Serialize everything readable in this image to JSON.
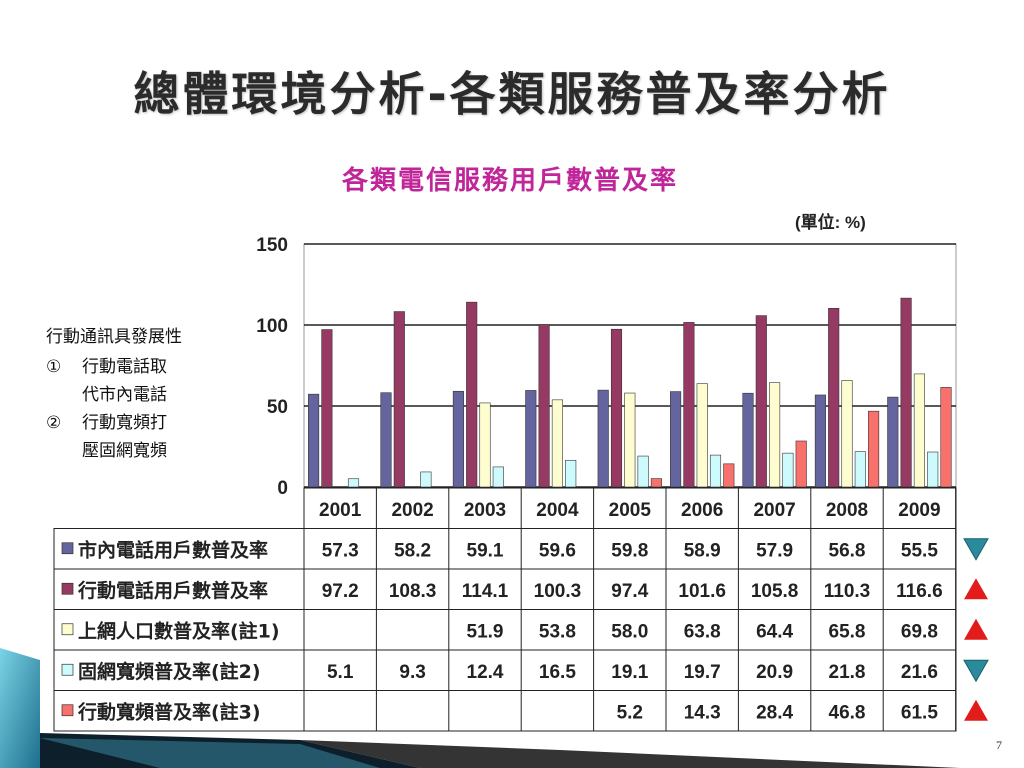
{
  "slide": {
    "title": "總體環境分析-各類服務普及率分析",
    "page_number": "7"
  },
  "notes": {
    "heading": "行動通訊具發展性",
    "items": [
      {
        "num": "①",
        "line1": "行動電話取",
        "line2": "代市內電話"
      },
      {
        "num": "②",
        "line1": "行動寬頻打",
        "line2": "壓固網寬頻"
      }
    ]
  },
  "chart_data": {
    "type": "bar",
    "title": "各類電信服務用戶數普及率",
    "unit_label": "(單位: %)",
    "categories": [
      "2001",
      "2002",
      "2003",
      "2004",
      "2005",
      "2006",
      "2007",
      "2008",
      "2009"
    ],
    "ylim": [
      0,
      150
    ],
    "yticks": [
      "0",
      "50",
      "100",
      "150"
    ],
    "grid": true,
    "legend": "table-below",
    "series": [
      {
        "name": "市內電話用戶數普及率",
        "color": "#64659e",
        "trend": "down",
        "values": [
          57.3,
          58.2,
          59.1,
          59.6,
          59.8,
          58.9,
          57.9,
          56.8,
          55.5
        ],
        "labels": [
          "57.3",
          "58.2",
          "59.1",
          "59.6",
          "59.8",
          "58.9",
          "57.9",
          "56.8",
          "55.5"
        ]
      },
      {
        "name": "行動電話用戶數普及率",
        "color": "#963a63",
        "trend": "up",
        "values": [
          97.2,
          108.3,
          114.1,
          100.3,
          97.4,
          101.6,
          105.8,
          110.3,
          116.6
        ],
        "labels": [
          "97.2",
          "108.3",
          "114.1",
          "100.3",
          "97.4",
          "101.6",
          "105.8",
          "110.3",
          "116.6"
        ]
      },
      {
        "name": "上網人口數普及率(註1)",
        "color": "#fefdd0",
        "trend": "up",
        "values": [
          null,
          null,
          51.9,
          53.8,
          58.0,
          63.8,
          64.4,
          65.8,
          69.8
        ],
        "labels": [
          "",
          "",
          "51.9",
          "53.8",
          "58.0",
          "63.8",
          "64.4",
          "65.8",
          "69.8"
        ]
      },
      {
        "name": "固網寬頻普及率(註2)",
        "color": "#cdfafc",
        "trend": "down",
        "values": [
          5.1,
          9.3,
          12.4,
          16.5,
          19.1,
          19.7,
          20.9,
          21.8,
          21.6
        ],
        "labels": [
          "5.1",
          "9.3",
          "12.4",
          "16.5",
          "19.1",
          "19.7",
          "20.9",
          "21.8",
          "21.6"
        ]
      },
      {
        "name": "行動寬頻普及率(註3)",
        "color": "#f8716c",
        "trend": "up",
        "values": [
          null,
          null,
          null,
          null,
          5.2,
          14.3,
          28.4,
          46.8,
          61.5
        ],
        "labels": [
          "",
          "",
          "",
          "",
          "5.2",
          "14.3",
          "28.4",
          "46.8",
          "61.5"
        ]
      }
    ]
  },
  "colors": {
    "title_text": "#2b2b2b",
    "chart_title": "#c0269a",
    "trend_up": "#e21b1b",
    "trend_down": "#2a8b9c"
  }
}
